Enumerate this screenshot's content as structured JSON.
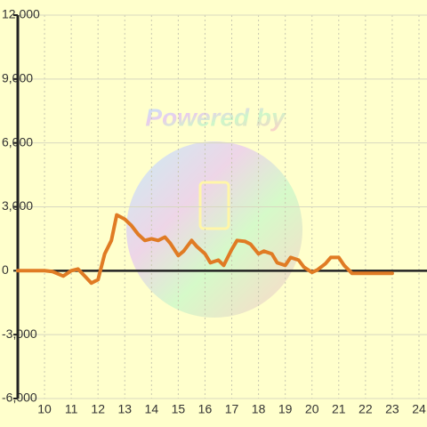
{
  "chart_data": {
    "type": "line",
    "watermark": "Powered by",
    "x": [
      9,
      10,
      10.3,
      10.7,
      11,
      11.25,
      11.5,
      11.75,
      12,
      12.25,
      12.5,
      12.7,
      13,
      13.25,
      13.5,
      13.75,
      14,
      14.25,
      14.5,
      14.7,
      15,
      15.2,
      15.5,
      15.7,
      16,
      16.2,
      16.5,
      16.7,
      17,
      17.2,
      17.5,
      17.7,
      18,
      18.2,
      18.5,
      18.7,
      19,
      19.2,
      19.5,
      19.7,
      20,
      20.2,
      20.5,
      20.7,
      21,
      21.2,
      21.5,
      23
    ],
    "series": [
      {
        "color": "#e07b24",
        "values": [
          0,
          0,
          -40,
          -250,
          0,
          80,
          -250,
          -580,
          -420,
          790,
          1420,
          2620,
          2420,
          2120,
          1710,
          1420,
          1500,
          1420,
          1580,
          1290,
          710,
          920,
          1420,
          1130,
          790,
          375,
          500,
          250,
          1000,
          1420,
          1375,
          1250,
          790,
          920,
          790,
          375,
          250,
          625,
          500,
          170,
          -80,
          40,
          330,
          625,
          625,
          250,
          -125,
          -125
        ]
      }
    ],
    "xlim": [
      9,
      24.3
    ],
    "xticks": [
      10,
      11,
      12,
      13,
      14,
      15,
      16,
      17,
      18,
      19,
      20,
      21,
      22,
      23,
      24
    ],
    "ylim": [
      -6000,
      12000
    ],
    "yticks": [
      {
        "value": -6000,
        "label": "-6,000"
      },
      {
        "value": -3000,
        "label": "-3,000"
      },
      0,
      {
        "value": 3000,
        "label": "3,000"
      },
      {
        "value": 6000,
        "label": "6,000"
      },
      {
        "value": 9000,
        "label": "9,000"
      },
      {
        "value": 12000,
        "label": "12,000"
      }
    ],
    "grid": true
  }
}
